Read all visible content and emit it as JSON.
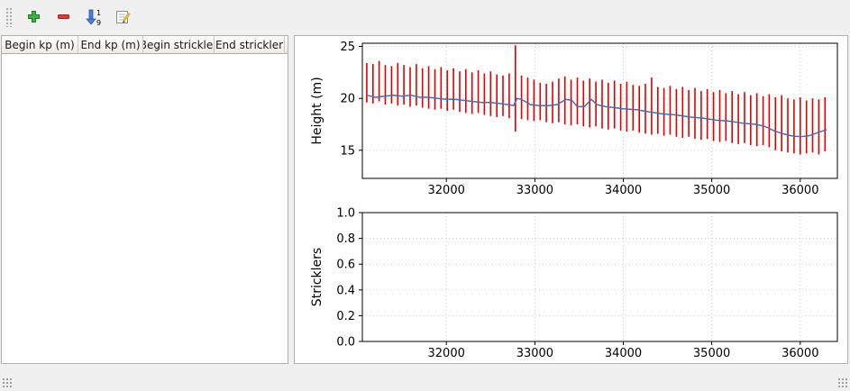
{
  "window": {
    "background": "#f0f0f0"
  },
  "toolbar": {
    "buttons": [
      {
        "id": "add",
        "icon": "plus-icon"
      },
      {
        "id": "remove",
        "icon": "minus-icon"
      },
      {
        "id": "sort",
        "icon": "sort-numeric-icon"
      },
      {
        "id": "edit",
        "icon": "edit-pencil-icon"
      }
    ]
  },
  "table": {
    "columns": [
      "Begin kp (m)",
      "End kp (m)",
      "Begin strickler",
      "End strickler"
    ],
    "rows": []
  },
  "chart_data": [
    {
      "type": "line",
      "title": "",
      "xlabel": "",
      "ylabel": "Height (m)",
      "xlim": [
        31050,
        36420
      ],
      "ylim": [
        12.3,
        25.3
      ],
      "xticks": [
        32000,
        33000,
        34000,
        35000,
        36000
      ],
      "xtick_labels": [
        "32000",
        "33000",
        "34000",
        "35000",
        "36000"
      ],
      "yticks": [
        15,
        20,
        25
      ],
      "ytick_labels": [
        "15",
        "20",
        "25"
      ],
      "grid": true,
      "grid_color": "#c9c9c9",
      "series": [
        {
          "name": "cross-section-extent-bars",
          "kind": "vbars",
          "color": "#e00000",
          "x": [
            31100,
            31170,
            31240,
            31310,
            31380,
            31450,
            31520,
            31590,
            31660,
            31730,
            31800,
            31870,
            31940,
            32010,
            32080,
            32150,
            32220,
            32290,
            32360,
            32430,
            32500,
            32570,
            32640,
            32710,
            32780,
            32850,
            32920,
            32990,
            33060,
            33130,
            33200,
            33270,
            33340,
            33410,
            33480,
            33550,
            33620,
            33690,
            33760,
            33830,
            33900,
            33970,
            34040,
            34110,
            34180,
            34250,
            34320,
            34390,
            34460,
            34530,
            34600,
            34670,
            34740,
            34810,
            34880,
            34950,
            35020,
            35090,
            35160,
            35230,
            35300,
            35370,
            35440,
            35510,
            35580,
            35650,
            35720,
            35790,
            35860,
            35930,
            36000,
            36070,
            36140,
            36210,
            36280
          ],
          "low": [
            19.6,
            19.5,
            19.7,
            19.4,
            19.5,
            19.3,
            19.4,
            19.2,
            19.3,
            19.1,
            19.0,
            18.9,
            19.0,
            18.8,
            18.9,
            18.7,
            18.6,
            18.5,
            18.6,
            18.4,
            18.3,
            18.2,
            18.3,
            18.1,
            16.8,
            18.0,
            17.9,
            17.8,
            17.9,
            17.7,
            17.6,
            17.7,
            17.5,
            17.4,
            17.5,
            17.3,
            17.2,
            17.3,
            17.1,
            17.0,
            17.1,
            16.9,
            16.8,
            16.9,
            16.7,
            16.6,
            16.5,
            16.6,
            16.4,
            16.5,
            16.3,
            16.2,
            16.3,
            16.1,
            16.0,
            16.1,
            15.9,
            15.8,
            15.9,
            15.7,
            15.6,
            15.7,
            15.5,
            15.4,
            15.5,
            15.3,
            15.0,
            14.9,
            14.8,
            14.7,
            14.6,
            14.7,
            14.8,
            14.6,
            14.9
          ],
          "high": [
            23.4,
            23.3,
            23.6,
            23.2,
            23.1,
            23.4,
            23.2,
            23.0,
            23.3,
            22.9,
            23.1,
            22.8,
            23.0,
            22.7,
            22.9,
            22.6,
            22.8,
            22.5,
            22.7,
            22.4,
            22.6,
            22.3,
            22.2,
            22.4,
            25.1,
            22.2,
            22.0,
            21.8,
            21.5,
            21.4,
            21.6,
            21.9,
            22.1,
            21.8,
            22.0,
            21.7,
            21.9,
            21.6,
            21.8,
            21.5,
            21.7,
            21.4,
            21.6,
            21.3,
            21.2,
            21.4,
            22.0,
            21.1,
            21.0,
            21.2,
            20.9,
            21.1,
            20.8,
            21.0,
            20.7,
            20.9,
            20.6,
            20.8,
            20.5,
            20.7,
            20.4,
            20.6,
            20.3,
            20.5,
            20.2,
            20.4,
            20.1,
            20.3,
            20.0,
            19.9,
            20.1,
            19.8,
            20.0,
            19.9,
            20.1
          ]
        },
        {
          "name": "water-level-line",
          "kind": "line",
          "color": "#4a6da7",
          "points": [
            [
              31100,
              20.3
            ],
            [
              31200,
              20.1
            ],
            [
              31300,
              20.2
            ],
            [
              31400,
              20.3
            ],
            [
              31500,
              20.2
            ],
            [
              31600,
              20.3
            ],
            [
              31700,
              20.1
            ],
            [
              31800,
              20.1
            ],
            [
              31900,
              20.0
            ],
            [
              32000,
              19.9
            ],
            [
              32100,
              19.9
            ],
            [
              32200,
              19.8
            ],
            [
              32300,
              19.7
            ],
            [
              32400,
              19.6
            ],
            [
              32500,
              19.6
            ],
            [
              32600,
              19.5
            ],
            [
              32700,
              19.4
            ],
            [
              32760,
              19.3
            ],
            [
              32800,
              20.0
            ],
            [
              32850,
              19.9
            ],
            [
              32950,
              19.4
            ],
            [
              33050,
              19.3
            ],
            [
              33150,
              19.3
            ],
            [
              33250,
              19.4
            ],
            [
              33350,
              19.9
            ],
            [
              33420,
              19.8
            ],
            [
              33480,
              19.2
            ],
            [
              33560,
              19.2
            ],
            [
              33640,
              19.9
            ],
            [
              33700,
              19.4
            ],
            [
              33800,
              19.2
            ],
            [
              33900,
              19.1
            ],
            [
              34000,
              19.0
            ],
            [
              34150,
              18.9
            ],
            [
              34300,
              18.7
            ],
            [
              34450,
              18.5
            ],
            [
              34600,
              18.4
            ],
            [
              34750,
              18.2
            ],
            [
              34900,
              18.1
            ],
            [
              35050,
              17.9
            ],
            [
              35200,
              17.8
            ],
            [
              35350,
              17.6
            ],
            [
              35500,
              17.5
            ],
            [
              35600,
              17.3
            ],
            [
              35700,
              16.9
            ],
            [
              35800,
              16.6
            ],
            [
              35900,
              16.4
            ],
            [
              36000,
              16.3
            ],
            [
              36100,
              16.4
            ],
            [
              36200,
              16.7
            ],
            [
              36300,
              17.0
            ]
          ]
        }
      ]
    },
    {
      "type": "line",
      "title": "",
      "xlabel": "",
      "ylabel": "Stricklers",
      "xlim": [
        31050,
        36420
      ],
      "ylim": [
        0,
        1.0
      ],
      "xticks": [
        32000,
        33000,
        34000,
        35000,
        36000
      ],
      "xtick_labels": [
        "32000",
        "33000",
        "34000",
        "35000",
        "36000"
      ],
      "yticks": [
        0,
        0.2,
        0.4,
        0.6,
        0.8,
        1.0
      ],
      "ytick_labels": [
        "0.0",
        "0.2",
        "0.4",
        "0.6",
        "0.8",
        "1.0"
      ],
      "grid": true,
      "grid_color": "#c9c9c9",
      "series": []
    }
  ]
}
